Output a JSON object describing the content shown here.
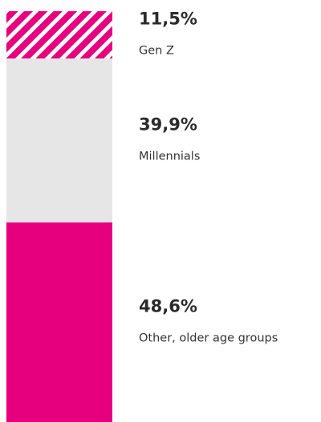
{
  "chart_data": {
    "type": "bar",
    "stacked": true,
    "series": [
      {
        "name": "Gen Z",
        "color": "#e6007e",
        "hatch": true,
        "values": [
          11.5
        ],
        "value_labels": [
          "11,5%"
        ]
      },
      {
        "name": "Millennials",
        "color": "#e6e6e6",
        "hatch": false,
        "values": [
          39.9
        ],
        "value_labels": [
          "39,9%"
        ]
      },
      {
        "name": "Other, older age groups",
        "color": "#e6007e",
        "hatch": false,
        "values": [
          48.6
        ],
        "value_labels": [
          "48,6%"
        ]
      }
    ]
  }
}
